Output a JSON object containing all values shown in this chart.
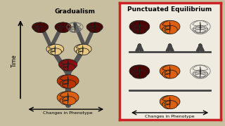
{
  "bg_color": "#c8bfa0",
  "left_bg": "#c8bfa0",
  "right_bg": "#f0ebe0",
  "right_border_color": "#cc2222",
  "title_left": "Gradualism",
  "title_right": "Punctuated Equilibrium",
  "xlabel": "Changes in Phenotype",
  "ylabel": "Time",
  "tree_color": "#555555",
  "butterfly_colors": {
    "dark_red": "#4a0505",
    "red": "#881010",
    "orange_red": "#bb3300",
    "orange": "#dd6010",
    "light_cream": "#e8c880",
    "outline": "#bbbbbb"
  },
  "figure_width": 3.2,
  "figure_height": 1.8,
  "dpi": 100
}
